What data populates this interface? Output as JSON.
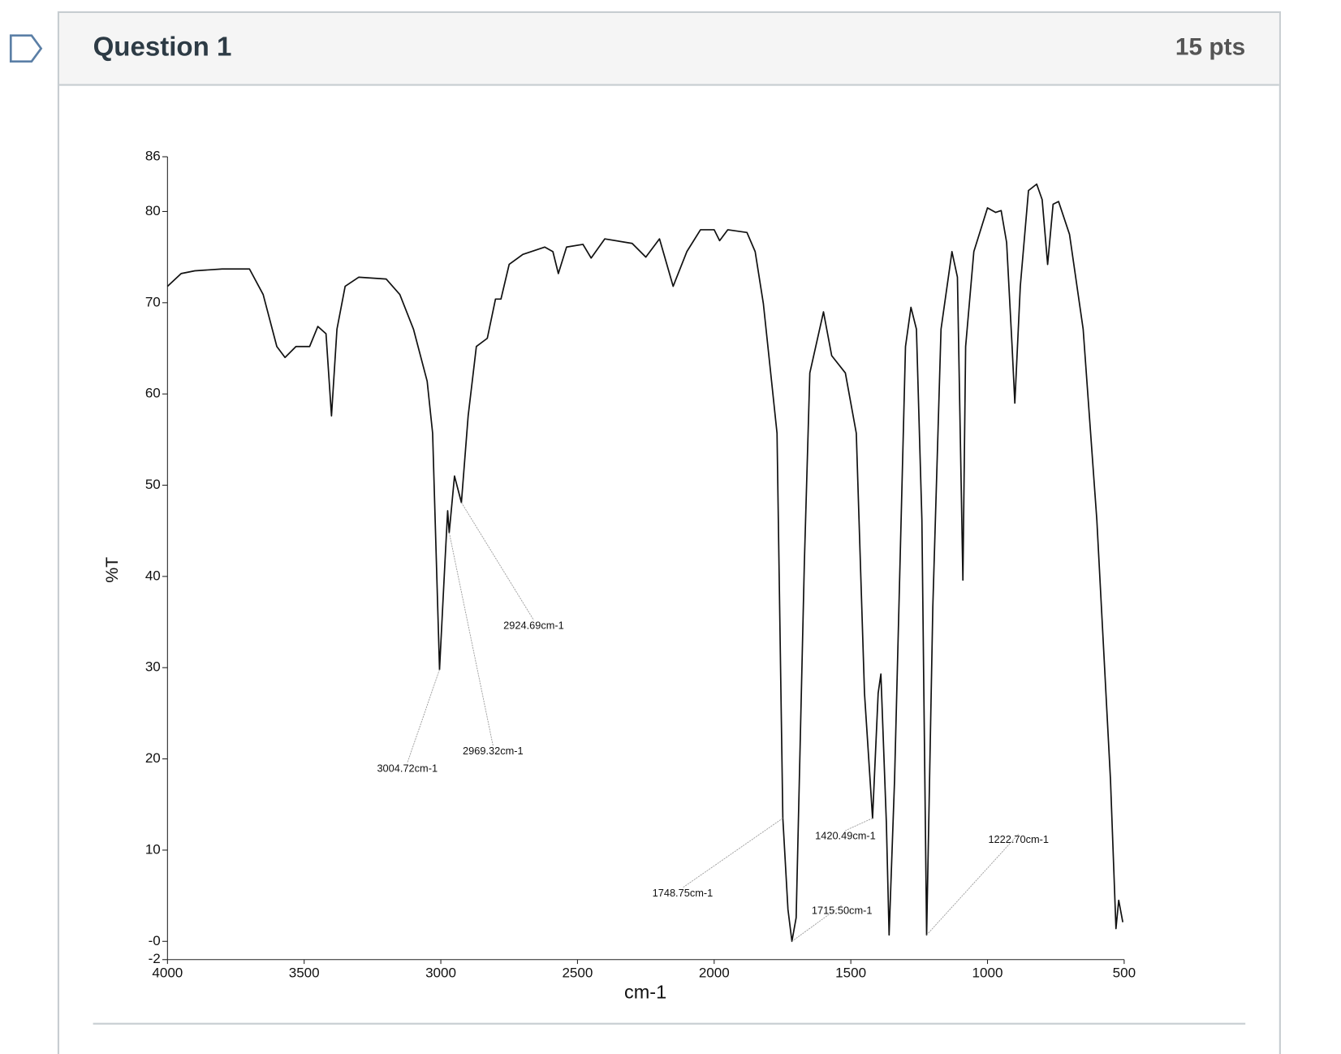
{
  "question": {
    "title": "Question 1",
    "points": "15 pts"
  },
  "chart_data": {
    "type": "line",
    "xlabel": "cm-1",
    "ylabel": "%T",
    "color": "#111111",
    "xlim": [
      4000,
      500
    ],
    "ylim": [
      -2,
      86
    ],
    "xticks": [
      4000,
      3500,
      3000,
      2500,
      2000,
      1500,
      1000,
      500
    ],
    "yticks": [
      86,
      80,
      70,
      60,
      50,
      40,
      30,
      20,
      10,
      {
        "value": 0,
        "label": "-0"
      },
      -2
    ],
    "x": [
      4000,
      3950,
      3900,
      3800,
      3700,
      3650,
      3600,
      3570,
      3530,
      3480,
      3450,
      3420,
      3400,
      3380,
      3350,
      3300,
      3200,
      3150,
      3100,
      3050,
      3030,
      3004.72,
      2985,
      2975,
      2969.32,
      2950,
      2924.69,
      2900,
      2870,
      2830,
      2800,
      2780,
      2750,
      2700,
      2620,
      2590,
      2570,
      2540,
      2480,
      2450,
      2400,
      2300,
      2250,
      2200,
      2150,
      2100,
      2050,
      2000,
      1980,
      1950,
      1880,
      1850,
      1820,
      1790,
      1770,
      1748.75,
      1730,
      1715.5,
      1700,
      1670,
      1650,
      1600,
      1570,
      1520,
      1480,
      1450,
      1420.49,
      1400,
      1390,
      1370,
      1360,
      1340,
      1300,
      1280,
      1260,
      1240,
      1222.7,
      1200,
      1170,
      1130,
      1110,
      1090,
      1080,
      1050,
      1000,
      970,
      950,
      930,
      910,
      900,
      880,
      850,
      820,
      800,
      780,
      760,
      740,
      700,
      650,
      600,
      550,
      530,
      520,
      505
    ],
    "values": [
      71.8,
      73.2,
      73.5,
      73.7,
      73.7,
      70.9,
      65.2,
      64.0,
      65.2,
      65.2,
      67.4,
      66.6,
      57.6,
      67.1,
      71.8,
      72.8,
      72.6,
      70.9,
      67.1,
      61.4,
      55.7,
      29.8,
      41.5,
      47.2,
      44.8,
      51.0,
      48.1,
      57.6,
      65.2,
      66.1,
      70.4,
      70.4,
      74.2,
      75.3,
      76.1,
      75.6,
      73.2,
      76.1,
      76.4,
      74.9,
      77.0,
      76.5,
      75.0,
      77.0,
      71.8,
      75.6,
      78.0,
      78.0,
      76.8,
      78.0,
      77.7,
      75.6,
      69.9,
      61.4,
      55.7,
      13.5,
      3.5,
      0,
      2.6,
      41.5,
      62.3,
      69.0,
      64.2,
      62.3,
      55.7,
      27.2,
      13.5,
      27.2,
      29.3,
      13.0,
      0.7,
      17.7,
      65.2,
      69.5,
      67.1,
      46.2,
      0.7,
      36.7,
      67.1,
      75.6,
      72.8,
      39.6,
      65.2,
      75.6,
      80.4,
      79.9,
      80.1,
      76.6,
      65.2,
      59.0,
      71.8,
      82.3,
      83.0,
      81.3,
      74.2,
      80.8,
      81.1,
      77.5,
      67.1,
      46.2,
      17.7,
      1.4,
      4.5,
      2.1
    ],
    "annotations": [
      {
        "label": "2924.69cm-1",
        "x": 2924.69,
        "y": 48.1
      },
      {
        "label": "3004.72cm-1",
        "x": 3004.72,
        "y": 29.8
      },
      {
        "label": "2969.32cm-1",
        "x": 2969.32,
        "y": 44.8
      },
      {
        "label": "1748.75cm-1",
        "x": 1748.75,
        "y": 13.5
      },
      {
        "label": "1420.49cm-1",
        "x": 1420.49,
        "y": 13.5
      },
      {
        "label": "1715.50cm-1",
        "x": 1715.5,
        "y": 0
      },
      {
        "label": "1222.70cm-1",
        "x": 1222.7,
        "y": 0.7
      }
    ]
  }
}
